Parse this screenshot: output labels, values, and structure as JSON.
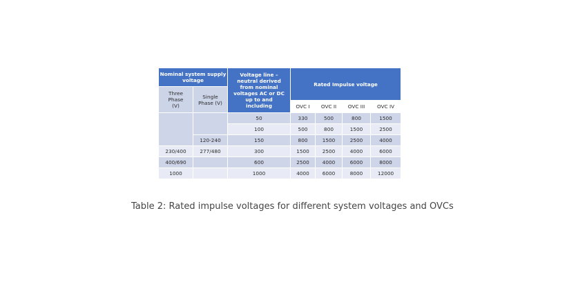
{
  "table": {
    "header": {
      "nominal_supply": "Nominal system supply voltage",
      "three_phase": "Three Phase (V)",
      "single_phase": "Single Phase (V)",
      "voltage_line": "Voltage line – neutral derived from nominal voltages AC or DC up to and including",
      "rated_impulse": "Rated Impulse voltage",
      "ovc": [
        "OVC I",
        "OVC II",
        "OVC III",
        "OVC IV"
      ]
    },
    "rows": [
      [
        "",
        "",
        "50",
        "330",
        "500",
        "800",
        "1500"
      ],
      [
        "",
        "",
        "100",
        "500",
        "800",
        "1500",
        "2500"
      ],
      [
        "",
        "120-240",
        "150",
        "800",
        "1500",
        "2500",
        "4000"
      ],
      [
        "230/400",
        "277/480",
        "300",
        "1500",
        "2500",
        "4000",
        "6000"
      ],
      [
        "400/690",
        "",
        "600",
        "2500",
        "4000",
        "6000",
        "8000"
      ],
      [
        "1000",
        "",
        "1000",
        "4000",
        "6000",
        "8000",
        "12000"
      ]
    ]
  },
  "caption": "Table 2: Rated impulse voltages for different system voltages and OVCs"
}
